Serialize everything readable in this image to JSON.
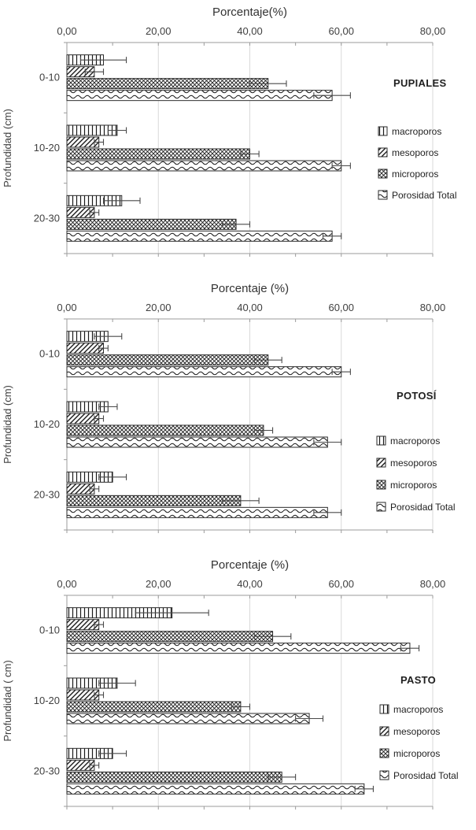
{
  "chart_data": [
    {
      "type": "bar",
      "orientation": "horizontal",
      "title": "Porcentaje(%)",
      "site_label": "PUPIALES",
      "ylabel": "Profundidad (cm)",
      "categories": [
        "0-10",
        "10-20",
        "20-30"
      ],
      "x_ticks": [
        "0,00",
        "20,00",
        "40,00",
        "60,00",
        "80,00"
      ],
      "xlim": [
        0,
        80
      ],
      "grid": true,
      "legend_position": "right",
      "series": [
        {
          "name": "macroporos",
          "pattern": "vertical-lines",
          "values": [
            8,
            11,
            12
          ],
          "errors": [
            5,
            2,
            4
          ]
        },
        {
          "name": "mesoporos",
          "pattern": "diagonal-lines",
          "values": [
            6,
            7,
            6
          ],
          "errors": [
            2,
            1,
            1
          ]
        },
        {
          "name": "microporos",
          "pattern": "crosshatch",
          "values": [
            44,
            40,
            37
          ],
          "errors": [
            4,
            2,
            3
          ]
        },
        {
          "name": "Porosidad Total",
          "pattern": "waves",
          "values": [
            58,
            60,
            58
          ],
          "errors": [
            4,
            2,
            2
          ]
        }
      ]
    },
    {
      "type": "bar",
      "orientation": "horizontal",
      "title": "Porcentaje (%)",
      "site_label": "POTOSÍ",
      "ylabel": "Profundidad (cm)",
      "categories": [
        "0-10",
        "10-20",
        "20-30"
      ],
      "x_ticks": [
        "0,00",
        "20,00",
        "40,00",
        "60,00",
        "80,00"
      ],
      "xlim": [
        0,
        80
      ],
      "grid": true,
      "legend_position": "right",
      "series": [
        {
          "name": "macroporos",
          "pattern": "vertical-lines",
          "values": [
            9,
            9,
            10
          ],
          "errors": [
            3,
            2,
            3
          ]
        },
        {
          "name": "mesoporos",
          "pattern": "diagonal-lines",
          "values": [
            8,
            7,
            6
          ],
          "errors": [
            1,
            1,
            1
          ]
        },
        {
          "name": "microporos",
          "pattern": "crosshatch",
          "values": [
            44,
            43,
            38
          ],
          "errors": [
            3,
            2,
            4
          ]
        },
        {
          "name": "Porosidad Total",
          "pattern": "waves",
          "values": [
            60,
            57,
            57
          ],
          "errors": [
            2,
            3,
            3
          ]
        }
      ]
    },
    {
      "type": "bar",
      "orientation": "horizontal",
      "title": "Porcentaje (%)",
      "site_label": "PASTO",
      "ylabel": "Profundidad ( cm)",
      "categories": [
        "0-10",
        "10-20",
        "20-30"
      ],
      "x_ticks": [
        "0,00",
        "20,00",
        "40,00",
        "60,00",
        "80,00"
      ],
      "xlim": [
        0,
        80
      ],
      "grid": true,
      "legend_position": "right",
      "series": [
        {
          "name": "macroporos",
          "pattern": "vertical-lines",
          "values": [
            23,
            11,
            10
          ],
          "errors": [
            8,
            4,
            3
          ]
        },
        {
          "name": "mesoporos",
          "pattern": "diagonal-lines",
          "values": [
            7,
            7,
            6
          ],
          "errors": [
            1,
            1,
            1
          ]
        },
        {
          "name": "microporos",
          "pattern": "crosshatch",
          "values": [
            45,
            38,
            47
          ],
          "errors": [
            4,
            2,
            3
          ]
        },
        {
          "name": "Porosidad Total",
          "pattern": "waves",
          "values": [
            75,
            53,
            65
          ],
          "errors": [
            2,
            3,
            2
          ]
        }
      ]
    }
  ]
}
